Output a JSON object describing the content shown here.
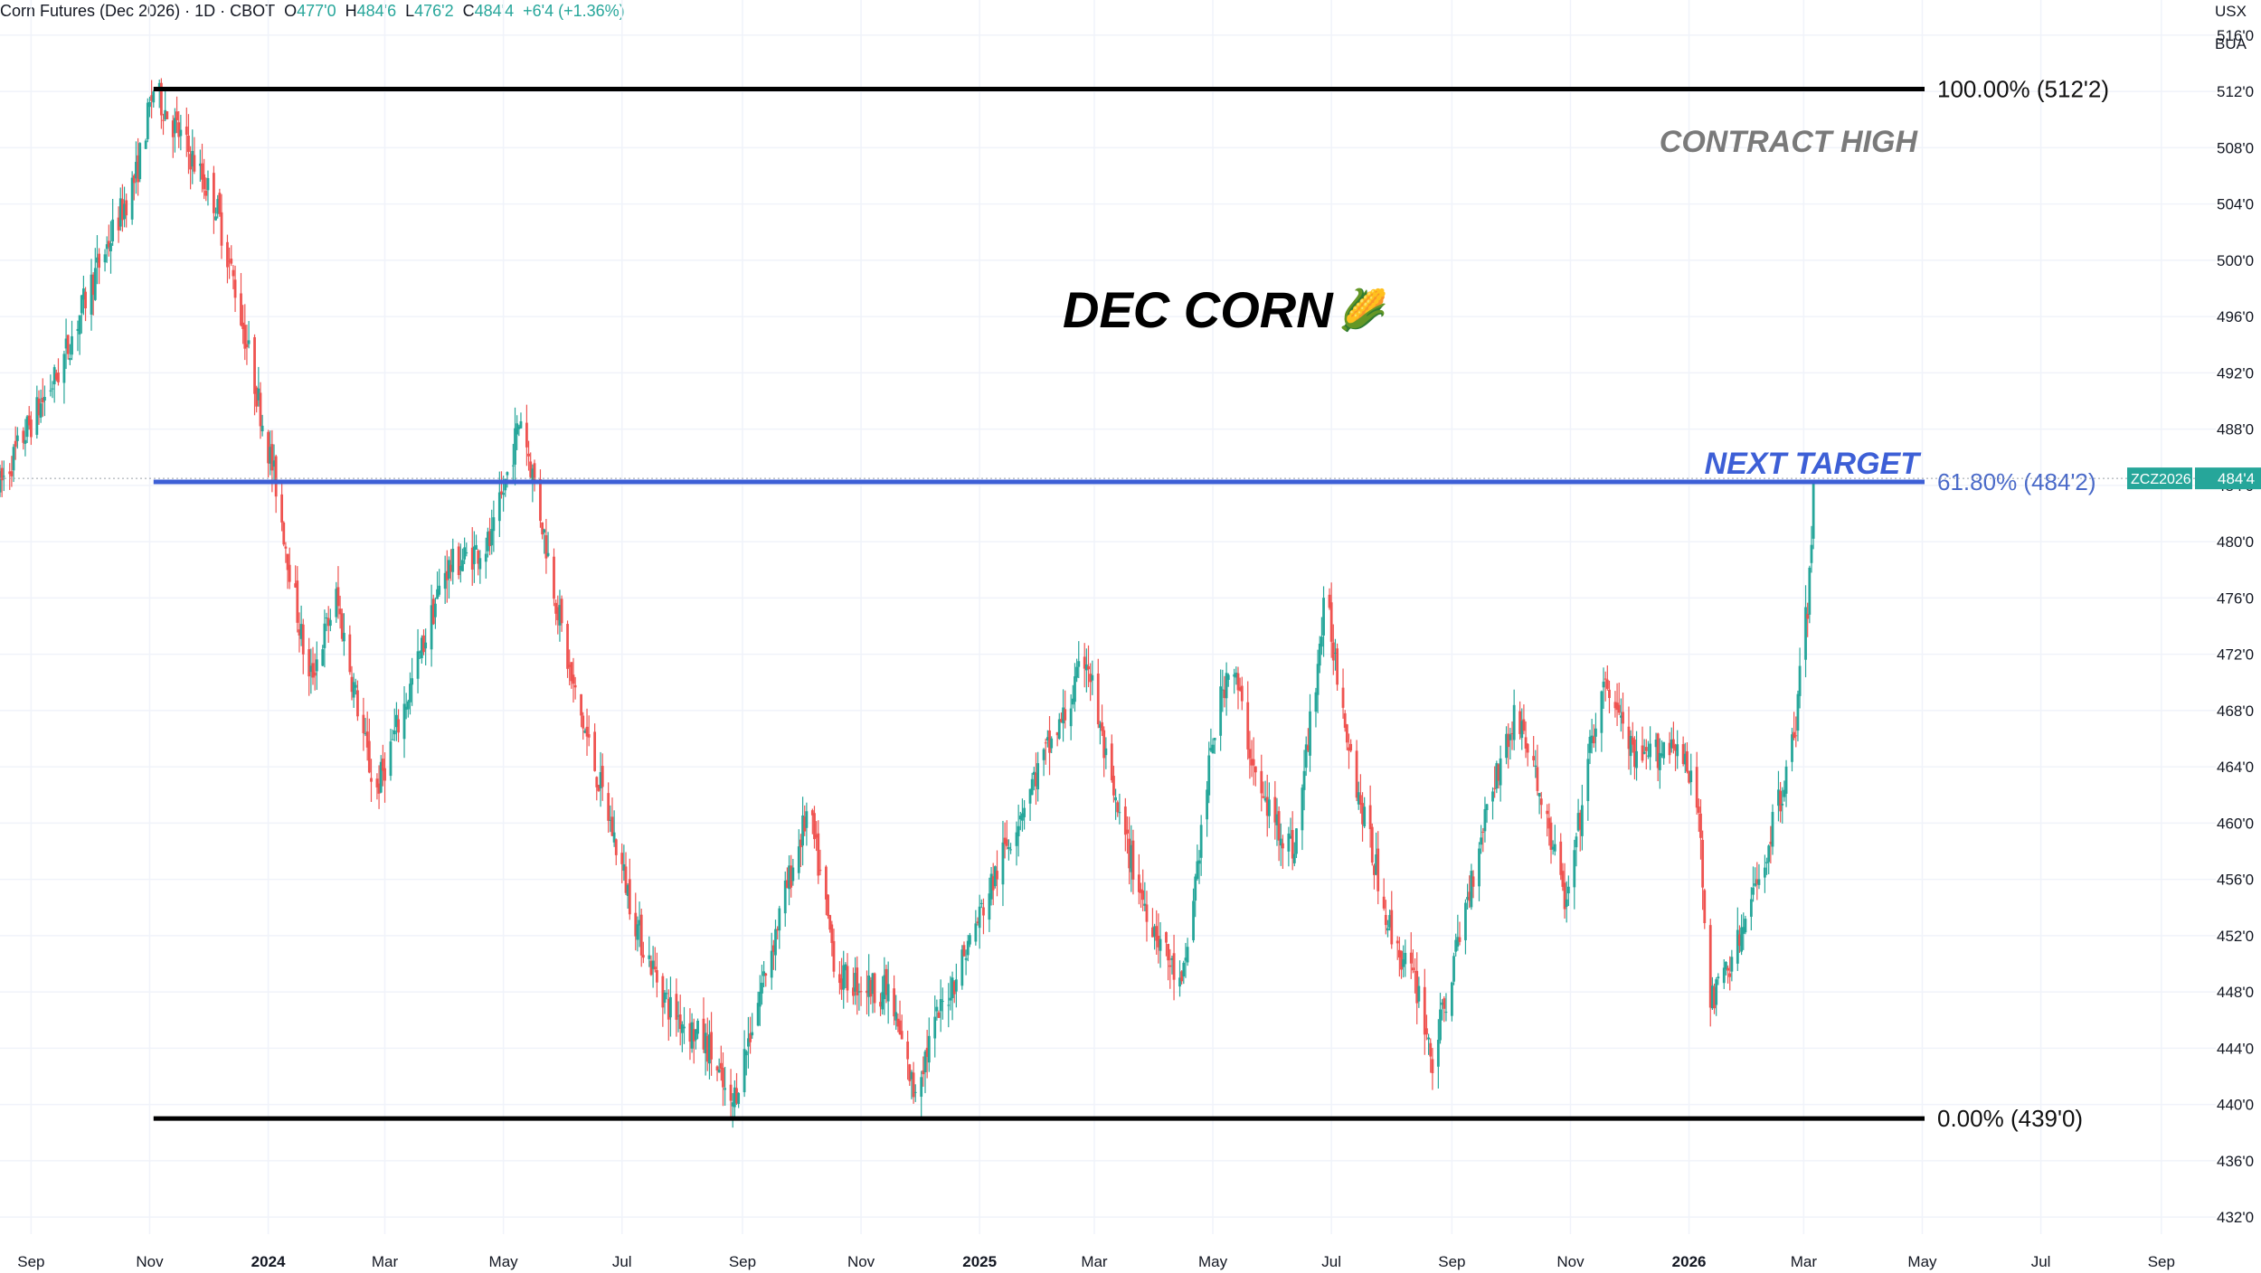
{
  "header": {
    "symbol": "Corn Futures (Dec 2026) · 1D · CBOT",
    "o_label": "O",
    "o_value": "477'0",
    "h_label": "H",
    "h_value": "484'6",
    "l_label": "L",
    "l_value": "476'2",
    "c_label": "C",
    "c_value": "484'4",
    "change": "+6'4 (+1.36%)"
  },
  "currency": {
    "unit": "USX",
    "per": "BUA"
  },
  "chart_data": {
    "type": "candlestick",
    "title": "DEC CORN",
    "title_emoji": "🌽",
    "ylim": [
      429.5,
      518.5
    ],
    "xlim": [
      "2023-08-16",
      "2026-09-29"
    ],
    "y_ticks": [
      "516'0",
      "512'0",
      "508'0",
      "504'0",
      "500'0",
      "496'0",
      "492'0",
      "488'0",
      "484'0",
      "480'0",
      "476'0",
      "472'0",
      "468'0",
      "464'0",
      "460'0",
      "456'0",
      "452'0",
      "448'0",
      "444'0",
      "440'0",
      "436'0",
      "432'0"
    ],
    "y_tick_values": [
      516,
      512,
      508,
      504,
      500,
      496,
      492,
      488,
      484,
      480,
      476,
      472,
      468,
      464,
      460,
      456,
      452,
      448,
      444,
      440,
      436,
      432
    ],
    "x_ticks": [
      {
        "label": "Sep",
        "date": "2023-09-01",
        "bold": false
      },
      {
        "label": "Nov",
        "date": "2023-11-01",
        "bold": false
      },
      {
        "label": "2024",
        "date": "2024-01-01",
        "bold": true
      },
      {
        "label": "Mar",
        "date": "2024-03-01",
        "bold": false
      },
      {
        "label": "May",
        "date": "2024-05-01",
        "bold": false
      },
      {
        "label": "Jul",
        "date": "2024-07-01",
        "bold": false
      },
      {
        "label": "Sep",
        "date": "2024-09-01",
        "bold": false
      },
      {
        "label": "Nov",
        "date": "2024-11-01",
        "bold": false
      },
      {
        "label": "2025",
        "date": "2025-01-01",
        "bold": true
      },
      {
        "label": "Mar",
        "date": "2025-03-01",
        "bold": false
      },
      {
        "label": "May",
        "date": "2025-05-01",
        "bold": false
      },
      {
        "label": "Jul",
        "date": "2025-07-01",
        "bold": false
      },
      {
        "label": "Sep",
        "date": "2025-09-01",
        "bold": false
      },
      {
        "label": "Nov",
        "date": "2025-11-01",
        "bold": false
      },
      {
        "label": "2026",
        "date": "2026-01-01",
        "bold": true
      },
      {
        "label": "Mar",
        "date": "2026-03-01",
        "bold": false
      },
      {
        "label": "May",
        "date": "2026-05-01",
        "bold": false
      },
      {
        "label": "Jul",
        "date": "2026-07-01",
        "bold": false
      },
      {
        "label": "Sep",
        "date": "2026-09-01",
        "bold": false
      }
    ],
    "price_path": [
      [
        "2023-08-16",
        484
      ],
      [
        "2023-08-30",
        488
      ],
      [
        "2023-09-15",
        492
      ],
      [
        "2023-10-01",
        498
      ],
      [
        "2023-10-25",
        506
      ],
      [
        "2023-11-03",
        512.2
      ],
      [
        "2023-11-20",
        508
      ],
      [
        "2023-12-05",
        504
      ],
      [
        "2023-12-15",
        498
      ],
      [
        "2024-01-05",
        484
      ],
      [
        "2024-01-22",
        470
      ],
      [
        "2024-02-05",
        476
      ],
      [
        "2024-02-25",
        462
      ],
      [
        "2024-03-15",
        470
      ],
      [
        "2024-04-01",
        478
      ],
      [
        "2024-04-25",
        480
      ],
      [
        "2024-05-10",
        489
      ],
      [
        "2024-05-20",
        482
      ],
      [
        "2024-06-05",
        470
      ],
      [
        "2024-06-25",
        460
      ],
      [
        "2024-07-10",
        452
      ],
      [
        "2024-07-25",
        447
      ],
      [
        "2024-08-15",
        444
      ],
      [
        "2024-08-26",
        439.5
      ],
      [
        "2024-09-10",
        448
      ],
      [
        "2024-09-25",
        456
      ],
      [
        "2024-10-05",
        461
      ],
      [
        "2024-10-20",
        449
      ],
      [
        "2024-11-15",
        448
      ],
      [
        "2024-11-28",
        441
      ],
      [
        "2024-12-10",
        446
      ],
      [
        "2024-12-28",
        452
      ],
      [
        "2025-01-25",
        462
      ],
      [
        "2025-02-15",
        468
      ],
      [
        "2025-02-25",
        472
      ],
      [
        "2025-03-10",
        462
      ],
      [
        "2025-03-25",
        455
      ],
      [
        "2025-04-15",
        448
      ],
      [
        "2025-05-01",
        466
      ],
      [
        "2025-05-10",
        472
      ],
      [
        "2025-05-25",
        462
      ],
      [
        "2025-06-12",
        458
      ],
      [
        "2025-06-28",
        476
      ],
      [
        "2025-07-05",
        470
      ],
      [
        "2025-07-15",
        462
      ],
      [
        "2025-08-01",
        452
      ],
      [
        "2025-08-15",
        448
      ],
      [
        "2025-08-22",
        443
      ],
      [
        "2025-09-05",
        452
      ],
      [
        "2025-09-20",
        462
      ],
      [
        "2025-10-05",
        468
      ],
      [
        "2025-10-20",
        460
      ],
      [
        "2025-10-30",
        454
      ],
      [
        "2025-11-12",
        466
      ],
      [
        "2025-11-20",
        470
      ],
      [
        "2025-12-05",
        464
      ],
      [
        "2025-12-25",
        466
      ],
      [
        "2026-01-06",
        461
      ],
      [
        "2026-01-12",
        447
      ],
      [
        "2026-01-28",
        452
      ],
      [
        "2026-02-10",
        458
      ],
      [
        "2026-02-24",
        466
      ],
      [
        "2026-03-04",
        477
      ],
      [
        "2026-03-06",
        484.5
      ]
    ],
    "series": [
      {
        "name": "100.00% (512'2)",
        "value": 512.17,
        "color": "#000000",
        "kind": "fib_level"
      },
      {
        "name": "61.80% (484'2)",
        "value": 484.25,
        "color": "#3d5fd6",
        "kind": "fib_level"
      },
      {
        "name": "0.00% (439'0)",
        "value": 439.0,
        "color": "#000000",
        "kind": "fib_level"
      }
    ],
    "annotations": [
      {
        "text": "CONTRACT HIGH",
        "color": "#7a7a7a"
      },
      {
        "text": "NEXT TARGET",
        "color": "#3d5fd6"
      }
    ],
    "last_price": {
      "symbol": "ZCZ2026",
      "value": 484.5,
      "label": "484'4",
      "color": "#26a69a"
    },
    "colors": {
      "up": "#26a69a",
      "down": "#ef5350",
      "grid": "#f0f3fa",
      "axis_text": "#131722"
    },
    "grid": true
  }
}
